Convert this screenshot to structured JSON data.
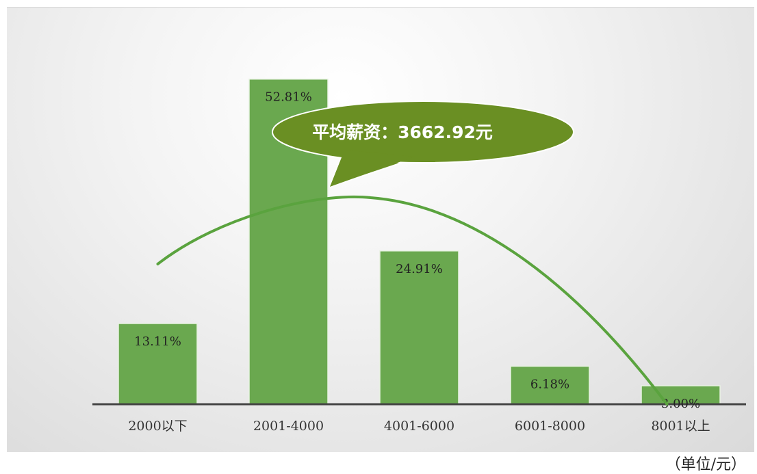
{
  "chart_data": {
    "type": "bar",
    "categories": [
      "2000以下",
      "2001-4000",
      "4001-6000",
      "6001-8000",
      "8001以上"
    ],
    "series": [
      {
        "values": [
          13.11,
          52.81,
          24.91,
          6.18,
          3.0
        ]
      }
    ],
    "value_labels": [
      "13.11%",
      "52.81%",
      "24.91%",
      "6.18%",
      "3.00%"
    ],
    "trend_line": {
      "type": "curve",
      "color": "#5aa33e"
    },
    "ylim": [
      0,
      60
    ],
    "grid": false,
    "colors": {
      "bar": "#6aa84f",
      "bar_border": "#e8f2e2",
      "callout": "#6a8f23",
      "trend": "#5aa33e",
      "axis": "#444444"
    },
    "annotation": "平均薪资：3662.92元",
    "unit_note": "（单位/元）"
  }
}
